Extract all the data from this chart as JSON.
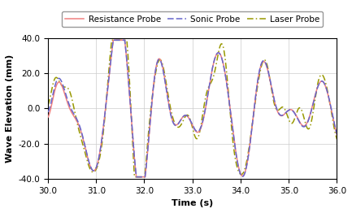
{
  "xlabel": "Time (s)",
  "ylabel": "Wave Elevation (mm)",
  "xlim": [
    30.0,
    36.0
  ],
  "ylim": [
    -40.0,
    40.0
  ],
  "xticks": [
    30.0,
    31.0,
    32.0,
    33.0,
    34.0,
    35.0,
    36.0
  ],
  "yticks": [
    -40.0,
    -20.0,
    0.0,
    20.0,
    40.0
  ],
  "legend": [
    {
      "label": "Resistance Probe",
      "color": "#f08080",
      "linestyle": "-",
      "linewidth": 1.1
    },
    {
      "label": "Sonic Probe",
      "color": "#6666cc",
      "linestyle": "--",
      "linewidth": 1.1,
      "dashes": [
        5,
        2
      ]
    },
    {
      "label": "Laser Probe",
      "color": "#999900",
      "linestyle": "-.",
      "linewidth": 1.1,
      "dashes": [
        5,
        2,
        1,
        2
      ]
    }
  ],
  "legend_ncol": 3,
  "grid_color": "#cccccc",
  "background_color": "#ffffff",
  "font_size": 7.5,
  "label_fontsize": 8,
  "tick_fontsize": 7.5
}
